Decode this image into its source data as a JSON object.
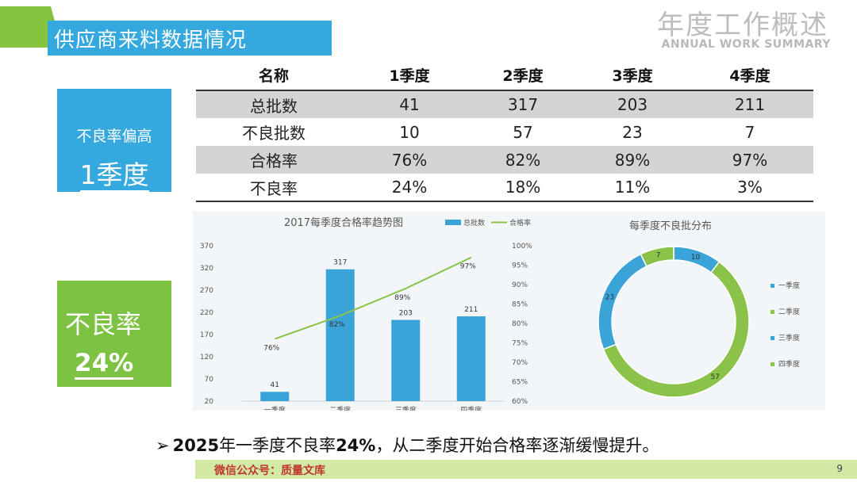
{
  "header": {
    "title": "供应商来料数据情况",
    "subtitle_cn": "年度工作概述",
    "subtitle_en": "ANNUAL WORK SUMMARY"
  },
  "cards": {
    "blue_label": "不良率偏高",
    "blue_value": "1季度",
    "green_label": "不良率",
    "green_value": "24%"
  },
  "table": {
    "headers": [
      "名称",
      "1季度",
      "2季度",
      "3季度",
      "4季度"
    ],
    "rows": [
      [
        "总批数",
        "41",
        "317",
        "203",
        "211"
      ],
      [
        "不良批数",
        "10",
        "57",
        "23",
        "7"
      ],
      [
        "合格率",
        "76%",
        "82%",
        "89%",
        "97%"
      ],
      [
        "不良率",
        "24%",
        "18%",
        "11%",
        "3%"
      ]
    ]
  },
  "colors": {
    "blue": "#35a8df",
    "green": "#86c440",
    "bar": "#3aa4d8",
    "line": "#8bc34a"
  },
  "chart_data": [
    {
      "type": "bar",
      "title": "2017每季度合格率趋势图",
      "categories": [
        "一季度",
        "二季度",
        "三季度",
        "四季度"
      ],
      "series": [
        {
          "name": "总批数",
          "type": "bar",
          "axis": "left",
          "values": [
            41,
            317,
            203,
            211
          ],
          "labels": [
            "41",
            "317",
            "203",
            "211"
          ]
        },
        {
          "name": "合格率",
          "type": "line",
          "axis": "right",
          "values": [
            76,
            82,
            89,
            97
          ],
          "labels": [
            "76%",
            "82%",
            "89%",
            "97%"
          ]
        }
      ],
      "y_left": {
        "range": [
          20,
          370
        ],
        "ticks": [
          "20",
          "70",
          "120",
          "170",
          "220",
          "270",
          "320",
          "370"
        ]
      },
      "y_right": {
        "range": [
          60,
          100
        ],
        "ticks": [
          "60%",
          "65%",
          "70%",
          "75%",
          "80%",
          "85%",
          "90%",
          "95%",
          "100%"
        ]
      },
      "legend": "top"
    },
    {
      "type": "pie",
      "subtype": "donut",
      "title": "每季度不良批分布",
      "categories": [
        "一季度",
        "二季度",
        "三季度",
        "四季度"
      ],
      "values": [
        10,
        57,
        23,
        7
      ],
      "colors": [
        "#3aa4d8",
        "#8bc34a",
        "#3aa4d8",
        "#8bc34a"
      ],
      "legend": "right"
    }
  ],
  "summary": {
    "arrow": "➢",
    "text_a": "2025",
    "text_b": "年一季度不良率",
    "text_c": "24%",
    "text_d": "，从二季度开始合格率逐渐缓慢提升。"
  },
  "footer": {
    "text": "微信公众号：质量文库",
    "page": "9"
  }
}
